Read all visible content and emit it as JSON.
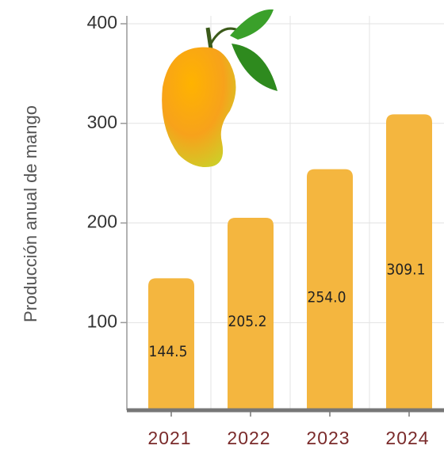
{
  "chart_data": {
    "type": "bar",
    "y_label": "Producción anual de mango",
    "categories": [
      "2021",
      "2022",
      "2023",
      "2024"
    ],
    "values": [
      144.5,
      205.2,
      254.0,
      309.1
    ],
    "value_labels": [
      "144.5",
      "205.2",
      "254.0",
      "309.1"
    ],
    "color": "#f4b63f",
    "ylim": [
      12,
      400
    ],
    "yticks": [
      100,
      200,
      300,
      400
    ],
    "grid": true
  }
}
